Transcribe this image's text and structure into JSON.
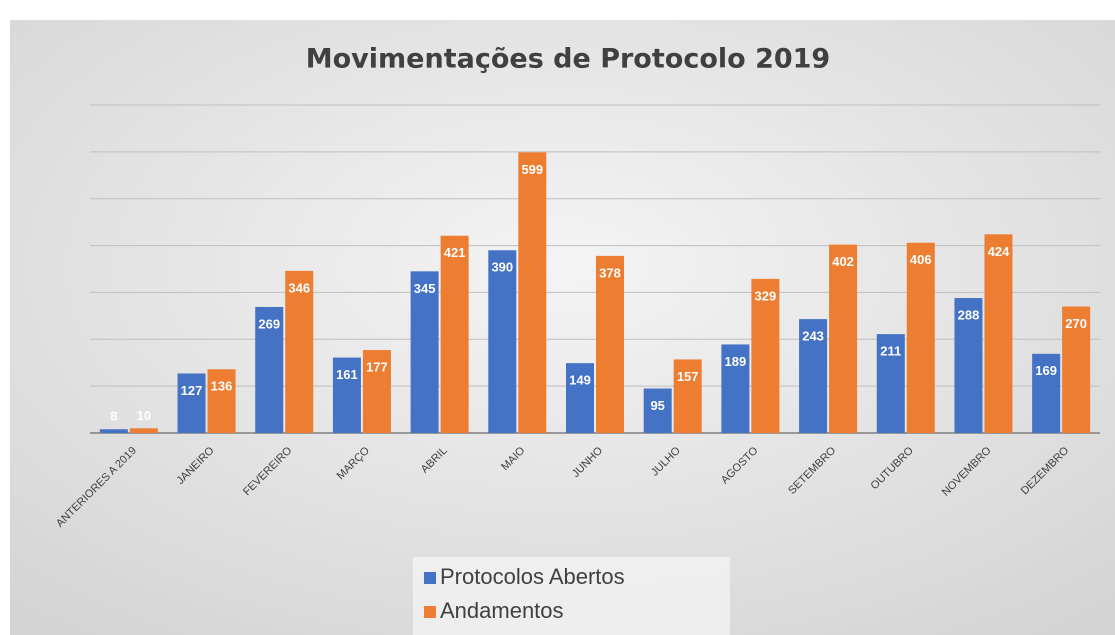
{
  "chart_data": {
    "type": "bar",
    "title": "Movimentações de Protocolo 2019",
    "categories": [
      "ANTERIORES A 2019",
      "JANEIRO",
      "FEVEREIRO",
      "MARÇO",
      "ABRIL",
      "MAIO",
      "JUNHO",
      "JULHO",
      "AGOSTO",
      "SETEMBRO",
      "OUTUBRO",
      "NOVEMBRO",
      "DEZEMBRO"
    ],
    "series": [
      {
        "name": "Protocolos Abertos",
        "color": "#4472c4",
        "values": [
          8,
          127,
          269,
          161,
          345,
          390,
          149,
          95,
          189,
          243,
          211,
          288,
          169
        ]
      },
      {
        "name": "Andamentos",
        "color": "#ed7d31",
        "values": [
          10,
          136,
          346,
          177,
          421,
          599,
          378,
          157,
          329,
          402,
          406,
          424,
          270
        ]
      }
    ],
    "ylim": [
      0,
      700
    ],
    "yticks": [
      0,
      100,
      200,
      300,
      400,
      500,
      600,
      700
    ],
    "grid": true,
    "legend": "bottom"
  }
}
